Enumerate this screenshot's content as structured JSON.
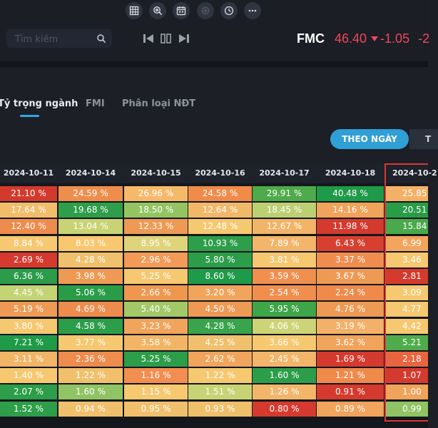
{
  "toolbar": {
    "buttons": [
      {
        "icon": "table-icon"
      },
      {
        "icon": "zoom-search-icon"
      },
      {
        "icon": "calendar-icon"
      },
      {
        "icon": "coin-icon"
      },
      {
        "icon": "clock-icon"
      },
      {
        "icon": "more-icon"
      }
    ]
  },
  "search": {
    "placeholder": "Tìm kiếm"
  },
  "ticker": {
    "symbol": "FMC",
    "price": "46.40",
    "change": "-1.05",
    "change2": "-2"
  },
  "tabs": [
    {
      "label": "Tỷ trọng ngành",
      "active": true
    },
    {
      "label": "FMI",
      "active": false
    },
    {
      "label": "Phân loại NĐT",
      "active": false
    }
  ],
  "view_toggle": {
    "active_label": "THEO NGÀY",
    "other_label": "T"
  },
  "table": {
    "dates": [
      "2024-10-11",
      "2024-10-14",
      "2024-10-15",
      "2024-10-16",
      "2024-10-17",
      "2024-10-18",
      "2024-10-2"
    ],
    "rows": [
      [
        "21.10 %",
        "24.59 %",
        "26.96 %",
        "24.58 %",
        "29.91 %",
        "40.48 %",
        "25.85"
      ],
      [
        "17.64 %",
        "19.68 %",
        "18.50 %",
        "12.64 %",
        "18.45 %",
        "14.16 %",
        "20.51"
      ],
      [
        "12.40 %",
        "13.04 %",
        "12.33 %",
        "12.48 %",
        "12.67 %",
        "11.98 %",
        "15.84"
      ],
      [
        "8.84 %",
        "8.03 %",
        "8.95 %",
        "10.93 %",
        "7.89 %",
        "6.43 %",
        "6.99"
      ],
      [
        "2.69 %",
        "4.28 %",
        "2.96 %",
        "5.80 %",
        "3.81 %",
        "3.37 %",
        "3.46"
      ],
      [
        "6.36 %",
        "3.98 %",
        "5.25 %",
        "8.60 %",
        "3.59 %",
        "3.67 %",
        "2.81"
      ],
      [
        "4.45 %",
        "5.06 %",
        "2.66 %",
        "3.20 %",
        "2.54 %",
        "2.24 %",
        "3.09"
      ],
      [
        "5.19 %",
        "4.69 %",
        "5.40 %",
        "4.50 %",
        "5.95 %",
        "4.76 %",
        "4.77"
      ],
      [
        "3.80 %",
        "4.58 %",
        "3.23 %",
        "4.28 %",
        "4.06 %",
        "3.19 %",
        "4.42"
      ],
      [
        "7.21 %",
        "3.77 %",
        "3.58 %",
        "4.25 %",
        "3.66 %",
        "3.62 %",
        "5.21"
      ],
      [
        "3.11 %",
        "2.36 %",
        "5.25 %",
        "2.62 %",
        "2.45 %",
        "1.69 %",
        "2.18"
      ],
      [
        "1.40 %",
        "1.22 %",
        "1.16 %",
        "1.22 %",
        "1.60 %",
        "1.21 %",
        "1.07"
      ],
      [
        "2.07 %",
        "1.60 %",
        "1.15 %",
        "1.51 %",
        "1.26 %",
        "0.91 %",
        "1.00"
      ],
      [
        "1.52 %",
        "0.94 %",
        "0.95 %",
        "0.93 %",
        "0.80 %",
        "0.89 %",
        "0.99"
      ]
    ],
    "colors": [
      [
        "#d33a2c",
        "#ee8e4c",
        "#f6b96a",
        "#f08b4a",
        "#4eaa4a",
        "#1f9a48",
        "#f3b067"
      ],
      [
        "#f2bd6a",
        "#2e9e4a",
        "#94c462",
        "#f2b86a",
        "#bcd073",
        "#f0a35a",
        "#2a9c48"
      ],
      [
        "#ee8c4d",
        "#c8d373",
        "#ee9a54",
        "#f6c870",
        "#f1b468",
        "#d43a2e",
        "#4aa94b"
      ],
      [
        "#f6c870",
        "#f8c76f",
        "#dfd47a",
        "#2e9e4a",
        "#f3b56a",
        "#d74030",
        "#f3a55e"
      ],
      [
        "#d43a2e",
        "#f0c06c",
        "#f29a56",
        "#2c9d49",
        "#f6c870",
        "#ef8d4f",
        "#f6c870"
      ],
      [
        "#2c9c4a",
        "#ee9a54",
        "#f6c870",
        "#1f9a48",
        "#f0904f",
        "#ee9a54",
        "#d53b2c"
      ],
      [
        "#c3d474",
        "#2a9c48",
        "#ef974f",
        "#f0a45c",
        "#f18e4d",
        "#ef8a4b",
        "#f6c870"
      ],
      [
        "#ee9a54",
        "#ee8c4d",
        "#a3c868",
        "#ee9a54",
        "#3ea548",
        "#ee9a54",
        "#f6c870"
      ],
      [
        "#f6c870",
        "#2c9d49",
        "#f0a45c",
        "#39a44b",
        "#cdd477",
        "#f3b069",
        "#f6c870"
      ],
      [
        "#1f9a48",
        "#f6c870",
        "#f2b465",
        "#f0c06c",
        "#f6c870",
        "#f0a35a",
        "#50ab4c"
      ],
      [
        "#f2b465",
        "#ee8c4d",
        "#2c9d49",
        "#f0a45c",
        "#f3b56a",
        "#d43a2e",
        "#e86540"
      ],
      [
        "#f6c870",
        "#f0c06c",
        "#f28e50",
        "#f6c870",
        "#2c9d49",
        "#ef8a4b",
        "#d43a2e"
      ],
      [
        "#2c9d49",
        "#8fc363",
        "#f6c870",
        "#c7d374",
        "#f3b56a",
        "#d43a2e",
        "#f0a35a"
      ],
      [
        "#2e9e4a",
        "#f0c06c",
        "#f0c06c",
        "#eec06a",
        "#d43a2e",
        "#f0a45c",
        "#8fc363"
      ]
    ]
  }
}
